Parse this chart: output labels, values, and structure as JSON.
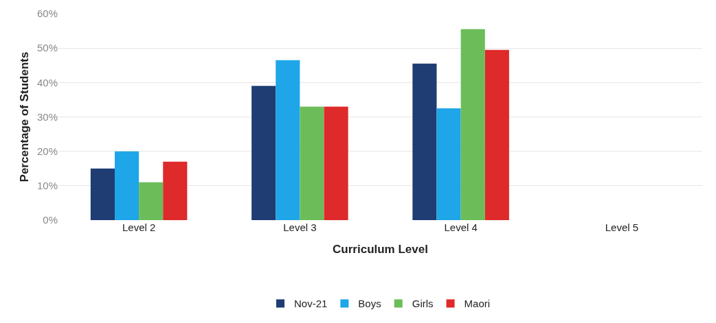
{
  "chart_data": {
    "type": "bar",
    "xlabel": "Curriculum Level",
    "ylabel": "Percentage of Students",
    "categories": [
      "Level 2",
      "Level 3",
      "Level 4",
      "Level 5"
    ],
    "series": [
      {
        "name": "Nov-21",
        "color": "#1f3d73",
        "values": [
          15,
          39,
          45.5,
          null
        ]
      },
      {
        "name": "Boys",
        "color": "#1ea6e8",
        "values": [
          20,
          46.5,
          32.5,
          null
        ]
      },
      {
        "name": "Girls",
        "color": "#6cbd5a",
        "values": [
          11,
          33,
          55.5,
          null
        ]
      },
      {
        "name": "Maori",
        "color": "#de2a2a",
        "values": [
          17,
          33,
          49.5,
          null
        ]
      }
    ],
    "ylim": [
      0,
      60
    ],
    "yticks": [
      {
        "value": 0,
        "label": "0%"
      },
      {
        "value": 10,
        "label": "10%"
      },
      {
        "value": 20,
        "label": "20%"
      },
      {
        "value": 30,
        "label": "30%"
      },
      {
        "value": 40,
        "label": "40%"
      },
      {
        "value": 50,
        "label": "50%"
      },
      {
        "value": 60,
        "label": "60%"
      }
    ],
    "grid": "y",
    "legend": "bottom"
  }
}
